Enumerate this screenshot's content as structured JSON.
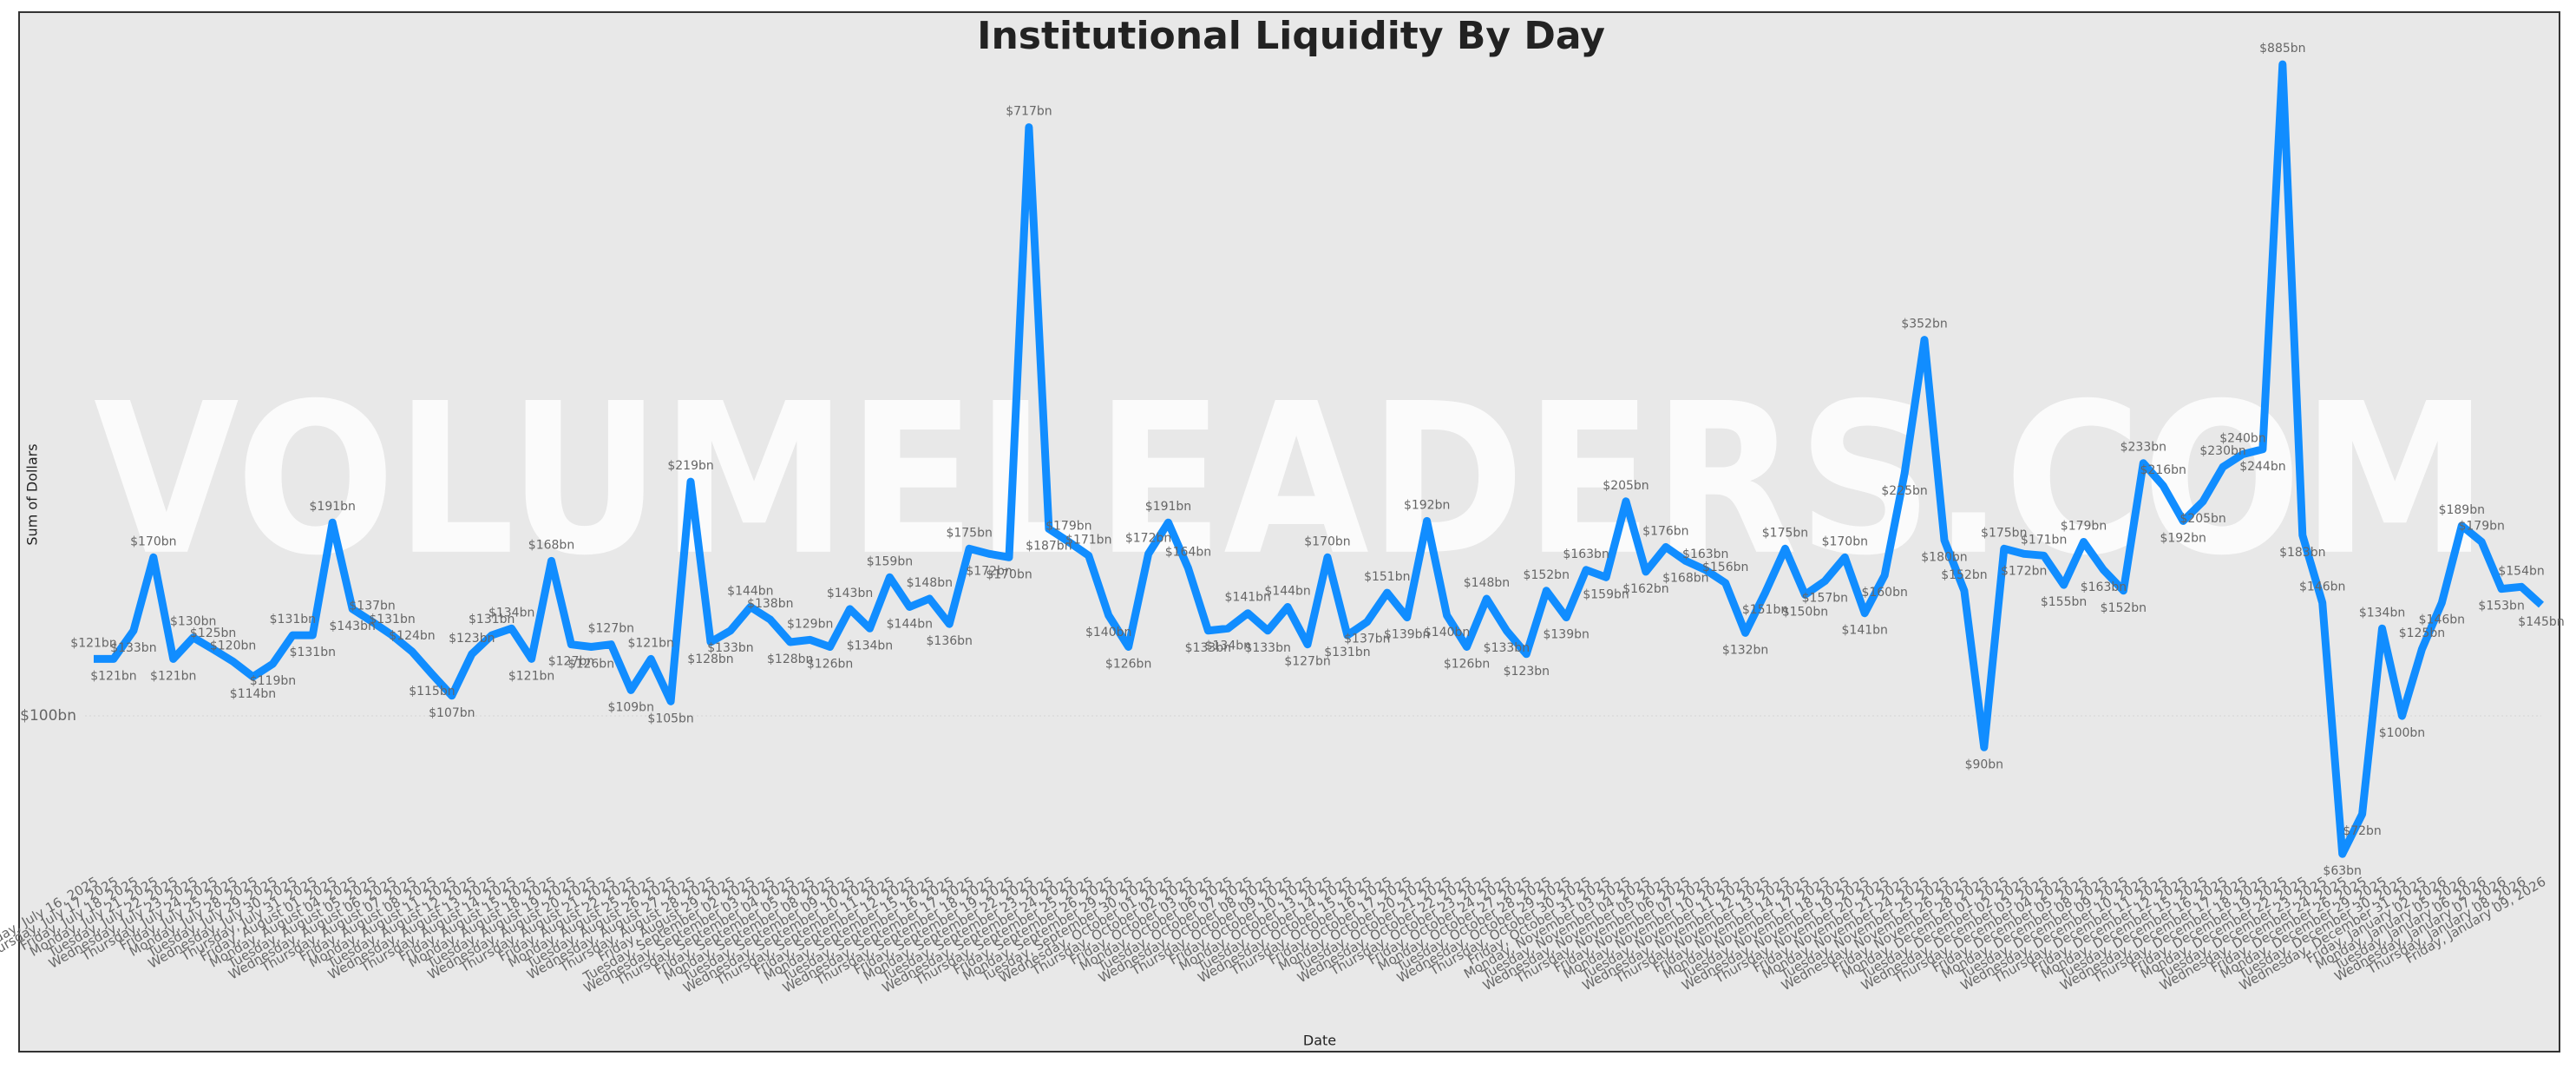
{
  "chart_data": {
    "type": "line",
    "title": "Institutional Liquidity By Day",
    "watermark": "VOLUMELEADERS.COM",
    "x_label": "Date",
    "y_label": "Sum of Dollars",
    "log_y": true,
    "color": "#118dff",
    "ylim": [
      60,
      1000
    ],
    "yticks": [
      {
        "value": 100,
        "label": "$100bn"
      }
    ],
    "grid": true,
    "categories": [
      "Wednesday, July 16, 2025",
      "Thursday, July 17, 2025",
      "Friday, July 18, 2025",
      "Monday, July 21, 2025",
      "Tuesday, July 22, 2025",
      "Wednesday, July 23, 2025",
      "Thursday, July 24, 2025",
      "Friday, July 25, 2025",
      "Monday, July 28, 2025",
      "Tuesday, July 29, 2025",
      "Wednesday, July 30, 2025",
      "Thursday, July 31, 2025",
      "Friday, August 01, 2025",
      "Monday, August 04, 2025",
      "Tuesday, August 05, 2025",
      "Wednesday, August 06, 2025",
      "Thursday, August 07, 2025",
      "Friday, August 08, 2025",
      "Monday, August 11, 2025",
      "Tuesday, August 12, 2025",
      "Wednesday, August 13, 2025",
      "Thursday, August 14, 2025",
      "Friday, August 15, 2025",
      "Monday, August 18, 2025",
      "Tuesday, August 19, 2025",
      "Wednesday, August 20, 2025",
      "Thursday, August 21, 2025",
      "Friday, August 22, 2025",
      "Monday, August 25, 2025",
      "Tuesday, August 26, 2025",
      "Wednesday, August 27, 2025",
      "Thursday, August 28, 2025",
      "Friday, August 29, 2025",
      "Tuesday, September 02, 2025",
      "Wednesday, September 03, 2025",
      "Thursday, September 04, 2025",
      "Friday, September 05, 2025",
      "Monday, September 08, 2025",
      "Tuesday, September 09, 2025",
      "Wednesday, September 10, 2025",
      "Thursday, September 11, 2025",
      "Friday, September 12, 2025",
      "Monday, September 15, 2025",
      "Tuesday, September 16, 2025",
      "Wednesday, September 17, 2025",
      "Thursday, September 18, 2025",
      "Friday, September 19, 2025",
      "Monday, September 22, 2025",
      "Tuesday, September 23, 2025",
      "Wednesday, September 24, 2025",
      "Thursday, September 25, 2025",
      "Friday, September 26, 2025",
      "Monday, September 29, 2025",
      "Tuesday, September 30, 2025",
      "Wednesday, October 01, 2025",
      "Thursday, October 02, 2025",
      "Friday, October 03, 2025",
      "Monday, October 06, 2025",
      "Tuesday, October 07, 2025",
      "Wednesday, October 08, 2025",
      "Thursday, October 09, 2025",
      "Friday, October 10, 2025",
      "Monday, October 13, 2025",
      "Tuesday, October 14, 2025",
      "Wednesday, October 15, 2025",
      "Thursday, October 16, 2025",
      "Friday, October 17, 2025",
      "Monday, October 20, 2025",
      "Tuesday, October 21, 2025",
      "Wednesday, October 22, 2025",
      "Thursday, October 23, 2025",
      "Friday, October 24, 2025",
      "Monday, October 27, 2025",
      "Tuesday, October 28, 2025",
      "Wednesday, October 29, 2025",
      "Thursday, October 30, 2025",
      "Friday, October 31, 2025",
      "Monday, November 03, 2025",
      "Tuesday, November 04, 2025",
      "Wednesday, November 05, 2025",
      "Thursday, November 06, 2025",
      "Friday, November 07, 2025",
      "Monday, November 10, 2025",
      "Tuesday, November 11, 2025",
      "Wednesday, November 12, 2025",
      "Thursday, November 13, 2025",
      "Friday, November 14, 2025",
      "Monday, November 17, 2025",
      "Tuesday, November 18, 2025",
      "Wednesday, November 19, 2025",
      "Thursday, November 20, 2025",
      "Friday, November 21, 2025",
      "Monday, November 24, 2025",
      "Tuesday, November 25, 2025",
      "Wednesday, November 26, 2025",
      "Friday, November 28, 2025",
      "Monday, December 01, 2025",
      "Tuesday, December 02, 2025",
      "Wednesday, December 03, 2025",
      "Thursday, December 04, 2025",
      "Friday, December 05, 2025",
      "Monday, December 08, 2025",
      "Tuesday, December 09, 2025",
      "Wednesday, December 10, 2025",
      "Thursday, December 11, 2025",
      "Friday, December 12, 2025",
      "Monday, December 15, 2025",
      "Tuesday, December 16, 2025",
      "Wednesday, December 17, 2025",
      "Thursday, December 18, 2025",
      "Friday, December 19, 2025",
      "Monday, December 22, 2025",
      "Tuesday, December 23, 2025",
      "Wednesday, December 24, 2025",
      "Friday, December 26, 2025",
      "Monday, December 29, 2025",
      "Tuesday, December 30, 2025",
      "Wednesday, December 31, 2025",
      "Friday, January 02, 2026",
      "Monday, January 05, 2026",
      "Tuesday, January 06, 2026",
      "Wednesday, January 07, 2026",
      "Thursday, January 08, 2026",
      "Friday, January 09, 2026"
    ],
    "values": [
      121,
      121,
      133,
      170,
      121,
      130,
      125,
      120,
      114,
      119,
      131,
      131,
      191,
      143,
      137,
      131,
      124,
      115,
      107,
      123,
      131,
      134,
      121,
      168,
      127,
      126,
      127,
      109,
      121,
      105,
      219,
      128,
      133,
      144,
      138,
      128,
      129,
      126,
      143,
      134,
      159,
      144,
      148,
      136,
      175,
      172,
      170,
      717,
      187,
      179,
      171,
      140,
      126,
      172,
      191,
      164,
      133,
      134,
      141,
      133,
      144,
      127,
      170,
      131,
      137,
      151,
      139,
      192,
      140,
      126,
      148,
      133,
      123,
      152,
      139,
      163,
      159,
      205,
      162,
      176,
      168,
      163,
      156,
      132,
      151,
      175,
      150,
      157,
      170,
      141,
      160,
      225,
      352,
      180,
      152,
      90,
      175,
      172,
      171,
      155,
      179,
      163,
      152,
      233,
      216,
      192,
      205,
      230,
      240,
      244,
      885,
      183,
      146,
      63,
      72,
      134,
      100,
      125,
      146,
      189,
      179,
      153,
      154,
      145
    ],
    "value_labels": [
      "$121bn",
      "$121bn",
      "$133bn",
      "$170bn",
      "$121bn",
      "$130bn",
      "$125bn",
      "$120bn",
      "$114bn",
      "$119bn",
      "$131bn",
      "$131bn",
      "$191bn",
      "$143bn",
      "$137bn",
      "$131bn",
      "$124bn",
      "$115bn",
      "$107bn",
      "$123bn",
      "$131bn",
      "$134bn",
      "$121bn",
      "$168bn",
      "$127bn",
      "$126bn",
      "$127bn",
      "$109bn",
      "$121bn",
      "$105bn",
      "$219bn",
      "$128bn",
      "$133bn",
      "$144bn",
      "$138bn",
      "$128bn",
      "$129bn",
      "$126bn",
      "$143bn",
      "$134bn",
      "$159bn",
      "$144bn",
      "$148bn",
      "$136bn",
      "$175bn",
      "$172bn",
      "$170bn",
      "$717bn",
      "$187bn",
      "$179bn",
      "$171bn",
      "$140bn",
      "$126bn",
      "$172bn",
      "$191bn",
      "$164bn",
      "$133bn",
      "$134bn",
      "$141bn",
      "$133bn",
      "$144bn",
      "$127bn",
      "$170bn",
      "$131bn",
      "$137bn",
      "$151bn",
      "$139bn",
      "$192bn",
      "$140bn",
      "$126bn",
      "$148bn",
      "$133bn",
      "$123bn",
      "$152bn",
      "$139bn",
      "$163bn",
      "$159bn",
      "$205bn",
      "$162bn",
      "$176bn",
      "$168bn",
      "$163bn",
      "$156bn",
      "$132bn",
      "$151bn",
      "$175bn",
      "$150bn",
      "$157bn",
      "$170bn",
      "$141bn",
      "$160bn",
      "$225bn",
      "$352bn",
      "$180bn",
      "$152bn",
      "$90bn",
      "$175bn",
      "$172bn",
      "$171bn",
      "$155bn",
      "$179bn",
      "$163bn",
      "$152bn",
      "$233bn",
      "$216bn",
      "$192bn",
      "$205bn",
      "$230bn",
      "$240bn",
      "$244bn",
      "$885bn",
      "$183bn",
      "$146bn",
      "$63bn",
      "$72bn",
      "$134bn",
      "$100bn",
      "$125bn",
      "$146bn",
      "$189bn",
      "$179bn",
      "$153bn",
      "$154bn",
      "$145bn"
    ]
  }
}
